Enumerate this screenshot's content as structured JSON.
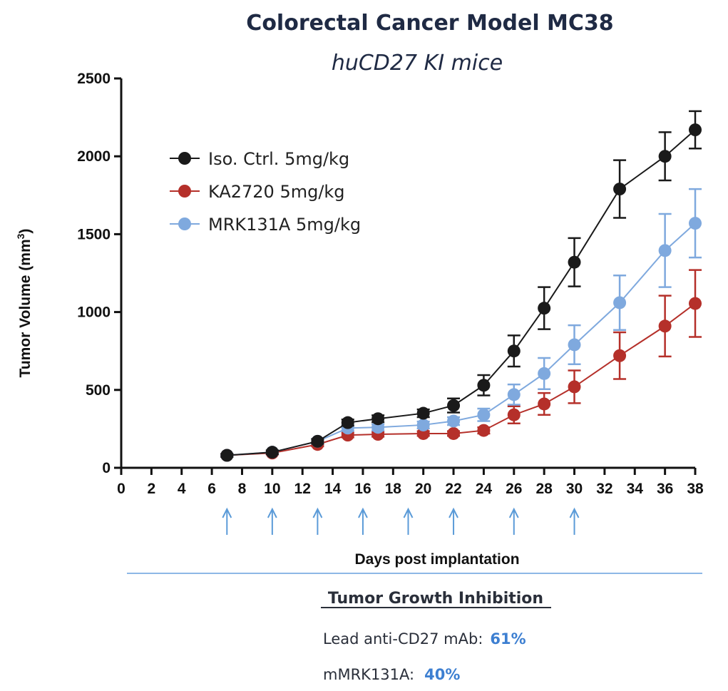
{
  "chart_data": {
    "type": "line",
    "title": "Colorectal Cancer Model MC38",
    "subtitle": "huCD27 KI mice",
    "xlabel": "Days post implantation",
    "ylabel": "Tumor Volume (mm³)",
    "ylabel_main": "Tumor Volume (mm",
    "ylabel_sup": "3",
    "ylabel_close": ")",
    "xlim": [
      0,
      38
    ],
    "ylim": [
      0,
      2500
    ],
    "xticks": [
      0,
      2,
      4,
      6,
      8,
      10,
      12,
      14,
      16,
      18,
      20,
      22,
      24,
      26,
      28,
      30,
      32,
      34,
      36,
      38
    ],
    "yticks": [
      0,
      500,
      1000,
      1500,
      2000,
      2500
    ],
    "dosing_days": [
      7,
      10,
      13,
      16,
      19,
      22,
      26,
      30
    ],
    "series": [
      {
        "name": "Iso. Ctrl. 5mg/kg",
        "color": "#1a1a1a",
        "x": [
          7,
          10,
          13,
          15,
          17,
          20,
          22,
          24,
          26,
          28,
          30,
          33,
          36,
          38
        ],
        "values": [
          80,
          100,
          170,
          290,
          315,
          350,
          400,
          530,
          750,
          1025,
          1320,
          1790,
          2000,
          2170
        ],
        "errors": [
          10,
          12,
          15,
          20,
          22,
          25,
          45,
          65,
          100,
          135,
          155,
          185,
          155,
          120
        ]
      },
      {
        "name": "KA2720 5mg/kg",
        "color": "#b5302a",
        "x": [
          7,
          10,
          13,
          15,
          17,
          20,
          22,
          24,
          26,
          28,
          30,
          33,
          36,
          38
        ],
        "values": [
          80,
          95,
          150,
          210,
          215,
          220,
          220,
          240,
          340,
          410,
          520,
          720,
          910,
          1055
        ],
        "errors": [
          8,
          10,
          12,
          15,
          15,
          15,
          15,
          20,
          55,
          70,
          105,
          150,
          195,
          215
        ]
      },
      {
        "name": "MRK131A 5mg/kg",
        "color": "#7fa9de",
        "x": [
          7,
          10,
          13,
          15,
          17,
          20,
          22,
          24,
          26,
          28,
          30,
          33,
          36,
          38
        ],
        "values": [
          80,
          100,
          170,
          255,
          260,
          275,
          300,
          340,
          470,
          605,
          790,
          1060,
          1395,
          1570
        ],
        "errors": [
          8,
          10,
          15,
          18,
          20,
          22,
          25,
          40,
          65,
          100,
          125,
          175,
          235,
          220
        ]
      }
    ]
  },
  "tgi": {
    "title": "Tumor Growth Inhibition",
    "rows": [
      {
        "label": "Lead anti-CD27 mAb:",
        "value": "61%"
      },
      {
        "label": "mMRK131A:",
        "value": "40%"
      }
    ],
    "value_color": "#3d7fd1",
    "arrow_color": "#5b9bd8",
    "rule_color": "#8db8e6"
  }
}
